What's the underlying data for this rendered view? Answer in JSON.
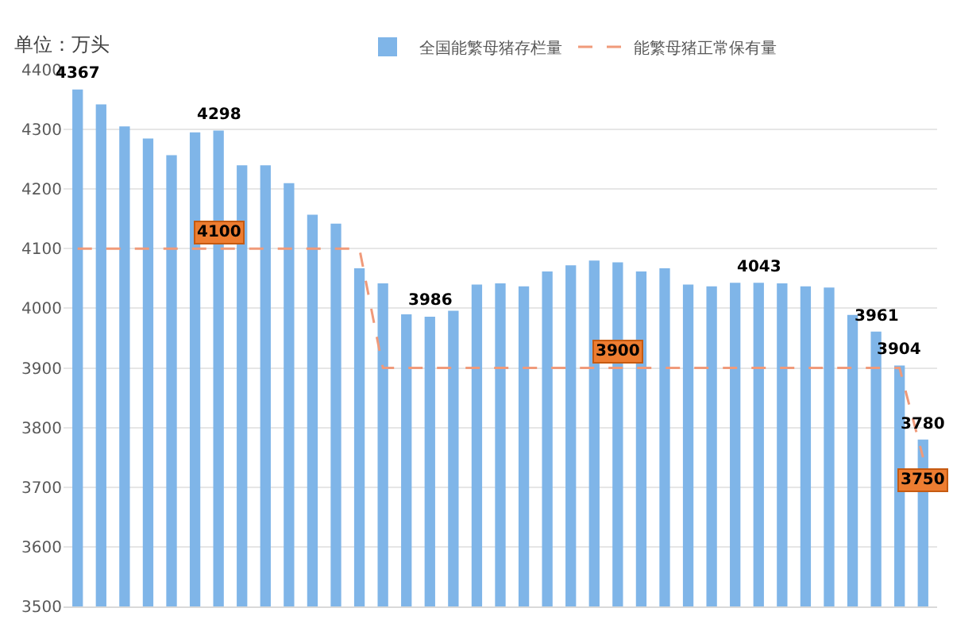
{
  "chart_data": {
    "type": "bar",
    "ylabel": "单位：万头",
    "categories": [
      null,
      null,
      null,
      null,
      null,
      null,
      null,
      null,
      null,
      null,
      null,
      null,
      null,
      null,
      null,
      null,
      null,
      null,
      null,
      null,
      null,
      null,
      null,
      null,
      null,
      null,
      null,
      null,
      null,
      null,
      null,
      null,
      null,
      null,
      null,
      null,
      null
    ],
    "series": [
      {
        "name": "全国能繁母猪存栏量",
        "color": "#7fb5e8",
        "values": [
          4367,
          4342,
          4305,
          4285,
          4257,
          4295,
          4298,
          4240,
          4240,
          4210,
          4157,
          4142,
          4067,
          4042,
          3990,
          3986,
          3996,
          4040,
          4042,
          4037,
          4062,
          4072,
          4080,
          4077,
          4062,
          4067,
          4040,
          4037,
          4043,
          4043,
          4042,
          4037,
          4035,
          3989,
          3961,
          3904,
          3780
        ],
        "value_labels": [
          "4367",
          null,
          null,
          null,
          null,
          null,
          "4298",
          null,
          null,
          null,
          null,
          null,
          null,
          null,
          null,
          "3986",
          null,
          null,
          null,
          null,
          null,
          null,
          null,
          null,
          null,
          null,
          null,
          null,
          null,
          "4043",
          null,
          null,
          null,
          null,
          "3961",
          "3904",
          "3780"
        ]
      },
      {
        "name": "能繁母猪正常保有量",
        "type": "line",
        "color": "#f09a7a",
        "line_style": "dashed",
        "values": [
          4100,
          4100,
          4100,
          4100,
          4100,
          4100,
          4100,
          4100,
          4100,
          4100,
          4100,
          4100,
          4100,
          3900,
          3900,
          3900,
          3900,
          3900,
          3900,
          3900,
          3900,
          3900,
          3900,
          3900,
          3900,
          3900,
          3900,
          3900,
          3900,
          3900,
          3900,
          3900,
          3900,
          3900,
          3900,
          3900,
          3750
        ],
        "value_labels": [
          null,
          null,
          null,
          null,
          null,
          null,
          "4100",
          null,
          null,
          null,
          null,
          null,
          null,
          null,
          null,
          null,
          null,
          null,
          null,
          null,
          null,
          null,
          null,
          "3900",
          null,
          null,
          null,
          null,
          null,
          null,
          null,
          null,
          null,
          null,
          null,
          null,
          "3750"
        ]
      }
    ],
    "ylim": [
      3500,
      4400
    ],
    "yticks": [
      3500,
      3600,
      3700,
      3800,
      3900,
      4000,
      4100,
      4200,
      4300,
      4400
    ],
    "grid": "y",
    "legend": "top",
    "marker": "none",
    "tick_labels": "y"
  }
}
